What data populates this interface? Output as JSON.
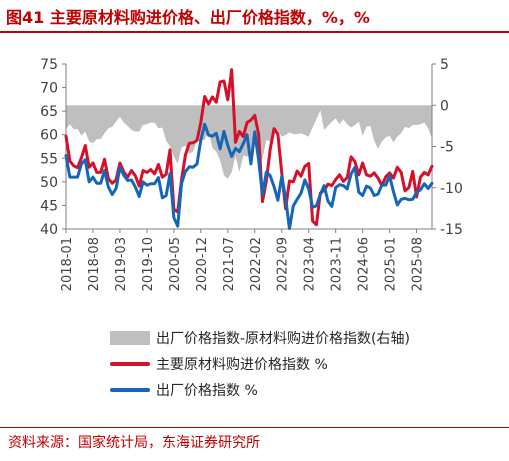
{
  "title": "图41  主要原材料购进价格、出厂价格指数，%，%",
  "source": "资料来源：国家统计局，东海证券研究所",
  "colors": {
    "red": "#d7102a",
    "blue": "#1566b7",
    "gray": "#bfbfbf",
    "title": "#c00000"
  },
  "chart_data": {
    "type": "line",
    "start_month": "2018-01",
    "x_tick_labels": [
      "2018-01",
      "2018-08",
      "2019-03",
      "2019-10",
      "2020-05",
      "2020-12",
      "2021-07",
      "2022-02",
      "2022-09",
      "2023-04",
      "2023-11",
      "2024-06",
      "2025-01",
      "2025-08"
    ],
    "left_axis": {
      "ylim": [
        40,
        75
      ],
      "ticks": [
        40,
        45,
        50,
        55,
        60,
        65,
        70,
        75
      ]
    },
    "right_axis": {
      "ylim": [
        -15,
        5
      ],
      "ticks": [
        -15,
        -10,
        -5,
        0,
        5
      ]
    },
    "series": [
      {
        "name": "出厂价格指数-原材料购进价格指数(右轴)",
        "kind": "area",
        "axis": "right",
        "values": [
          -2.9,
          -2.3,
          -2.9,
          -2.9,
          -3.7,
          -3.2,
          -4.4,
          -4.6,
          -4.1,
          -4.1,
          -3.4,
          -2.8,
          -2.6,
          -2.0,
          -1.4,
          -2.1,
          -2.5,
          -3.0,
          -3.2,
          -3.2,
          -2.4,
          -2.3,
          -2.1,
          -2.1,
          -2.8,
          -2.7,
          -4.3,
          -5.0,
          -6.2,
          -7.1,
          -5.1,
          -4.9,
          -5.9,
          -5.6,
          -4.3,
          -4.3,
          -4.2,
          -3.1,
          -5.2,
          -5.6,
          -6.7,
          -8.5,
          -8.9,
          -8.1,
          -6.2,
          -8.1,
          -6.1,
          -6.2,
          -6.0,
          -4.9,
          -6.8,
          -6.5,
          -4.2,
          -4.4,
          -3.2,
          -3.1,
          -3.8,
          -3.6,
          -3.3,
          -3.5,
          -3.5,
          -3.4,
          -3.6,
          -3.8,
          -2.7,
          -1.7,
          -0.6,
          -3.0,
          -2.5,
          -2.0,
          -1.6,
          -2.3,
          -1.7,
          -2.3,
          -2.7,
          -2.4,
          -2.0,
          -3.7,
          -2.6,
          -2.5,
          -4.3,
          -5.3,
          -4.4,
          -3.9,
          -3.7,
          -4.5,
          -3.8,
          -3.4,
          -2.6,
          -2.8,
          -2.4,
          -2.4,
          -2.3,
          -2.1,
          -2.8,
          -4.0
        ]
      },
      {
        "name": "主要原材料购进价格指数 %",
        "kind": "line",
        "axis": "left",
        "values": [
          59.7,
          54.4,
          53.4,
          53.0,
          55.1,
          57.7,
          53.1,
          54.0,
          52.0,
          52.0,
          54.8,
          50.7,
          49.7,
          50.4,
          54.0,
          52.1,
          51.0,
          52.4,
          51.3,
          49.1,
          52.4,
          52.0,
          52.6,
          51.7,
          53.7,
          51.0,
          51.6,
          56.8,
          44.2,
          43.6,
          50.5,
          55.7,
          58.2,
          58.3,
          58.8,
          62.6,
          68.1,
          66.5,
          68.0,
          66.9,
          71.2,
          71.4,
          67.4,
          73.8,
          58.4,
          60.7,
          59.6,
          62.6,
          63.1,
          64.1,
          60.1,
          45.8,
          50.2,
          56.9,
          61.3,
          60.1,
          51.9,
          44.3,
          50.2,
          50.0,
          52.3,
          51.2,
          53.3,
          53.9,
          41.7,
          40.9,
          47.6,
          48.2,
          49.5,
          49.2,
          50.5,
          51.5,
          50.1,
          50.9,
          55.3,
          54.3,
          51.5,
          54.0,
          51.5,
          51.2,
          51.9,
          50.8,
          49.2,
          51.1,
          51.9,
          50.8,
          53.1,
          52.0,
          48.1,
          48.8,
          52.2,
          46.8,
          51.0,
          52.0,
          51.5,
          53.3
        ]
      },
      {
        "name": "出厂价格指数 %",
        "kind": "line",
        "axis": "left",
        "values": [
          55.6,
          51.0,
          51.0,
          51.0,
          53.8,
          54.7,
          50.0,
          51.0,
          49.7,
          49.7,
          52.4,
          48.9,
          47.3,
          48.6,
          53.1,
          51.4,
          50.3,
          50.4,
          48.9,
          46.9,
          50.0,
          49.3,
          49.6,
          49.6,
          50.9,
          46.6,
          47.1,
          51.8,
          42.4,
          40.6,
          49.7,
          52.2,
          53.2,
          53.1,
          53.8,
          58.9,
          62.2,
          59.9,
          59.7,
          60.3,
          57.0,
          60.7,
          57.7,
          55.4,
          57.1,
          56.4,
          58.1,
          60.0,
          53.8,
          60.6,
          54.6,
          47.2,
          52.1,
          51.3,
          49.0,
          46.1,
          51.2,
          46.6,
          40.1,
          44.9,
          46.3,
          47.6,
          50.4,
          48.5,
          44.6,
          44.9,
          47.3,
          49.2,
          45.9,
          44.8,
          48.8,
          49.4,
          49.2,
          48.5,
          51.7,
          53.1,
          47.8,
          47.1,
          49.1,
          48.7,
          47.1,
          47.4,
          49.4,
          49.3,
          51.3,
          47.9,
          45.1,
          46.3,
          46.5,
          46.2,
          46.3,
          47.8,
          48.3,
          49.6,
          48.6,
          49.7
        ]
      }
    ]
  }
}
